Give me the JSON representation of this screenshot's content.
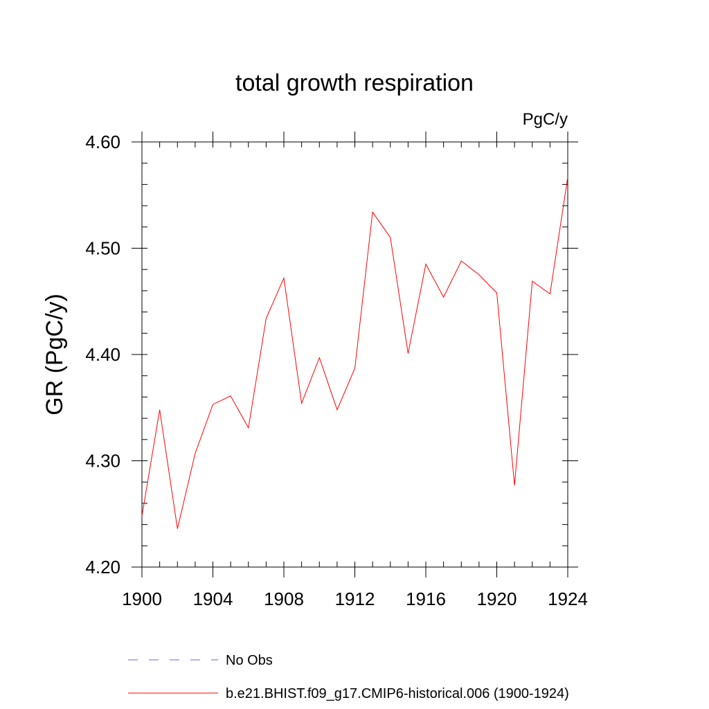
{
  "chart_data": {
    "type": "line",
    "title": "total growth respiration",
    "units": "PgC/y",
    "ylabel": "GR  (PgC/y)",
    "xlabel": "",
    "xlim": [
      1900,
      1924
    ],
    "ylim": [
      4.2,
      4.6
    ],
    "x_ticks": [
      1900,
      1904,
      1908,
      1912,
      1916,
      1920,
      1924
    ],
    "x_tick_labels": [
      "1900",
      "1904",
      "1908",
      "1912",
      "1916",
      "1920",
      "1924"
    ],
    "y_ticks": [
      4.2,
      4.3,
      4.4,
      4.5,
      4.6
    ],
    "y_tick_labels": [
      "4.20",
      "4.30",
      "4.40",
      "4.50",
      "4.60"
    ],
    "grid": false,
    "legend_position": "bottom",
    "series": [
      {
        "name": "b.e21.BHIST.f09_g17.CMIP6-historical.006 (1900-1924)",
        "color": "#ff0000",
        "style": "solid",
        "x": [
          1900,
          1901,
          1902,
          1903,
          1904,
          1905,
          1906,
          1907,
          1908,
          1909,
          1910,
          1911,
          1912,
          1913,
          1914,
          1915,
          1916,
          1917,
          1918,
          1919,
          1920,
          1921,
          1922,
          1923,
          1924
        ],
        "y": [
          4.248,
          4.348,
          4.236,
          4.307,
          4.353,
          4.361,
          4.331,
          4.434,
          4.472,
          4.354,
          4.397,
          4.348,
          4.387,
          4.534,
          4.51,
          4.401,
          4.485,
          4.454,
          4.488,
          4.475,
          4.458,
          4.277,
          4.469,
          4.457,
          4.567
        ]
      }
    ],
    "legend": [
      {
        "label": "No Obs",
        "color": "#6a6ad0",
        "style": "dashed"
      },
      {
        "label": "b.e21.BHIST.f09_g17.CMIP6-historical.006 (1900-1924)",
        "color": "#ff0000",
        "style": "solid"
      }
    ]
  }
}
